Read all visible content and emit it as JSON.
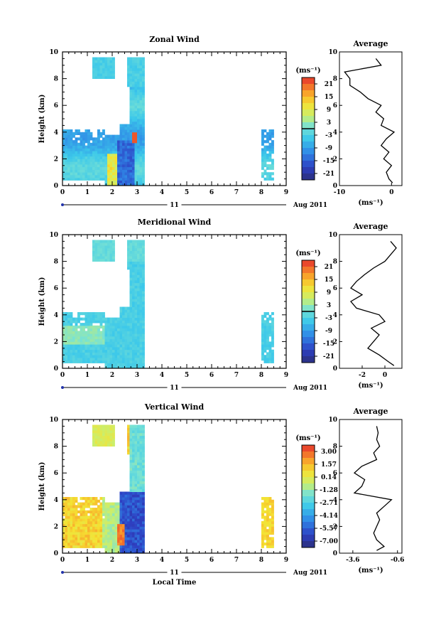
{
  "chart_data": [
    {
      "type": "heatmap",
      "title": "Zonal Wind",
      "xlabel": "",
      "ylabel": "Height (km)",
      "xlim": [
        0,
        9
      ],
      "ylim": [
        0,
        10
      ],
      "xticks": [
        "0",
        "1",
        "2",
        "3",
        "4",
        "5",
        "6",
        "7",
        "8",
        "9"
      ],
      "yticks": [
        "0",
        "2",
        "4",
        "6",
        "8",
        "10"
      ],
      "date_day": "11",
      "date_label": "Aug 2011",
      "colorbar": {
        "unit": "(ms⁻¹)",
        "labels": [
          "21",
          "15",
          "9",
          "3",
          "-3",
          "-9",
          "-15",
          "-21"
        ],
        "range": [
          -24,
          24
        ]
      },
      "average": {
        "title": "Average",
        "xlabel": "(ms⁻¹)",
        "xticks": [
          "-10",
          "0"
        ],
        "xlim": [
          -10,
          2
        ],
        "profile": [
          [
            0.2,
            0.2
          ],
          [
            0.5,
            -0.5
          ],
          [
            1.0,
            -1.0
          ],
          [
            1.5,
            0.0
          ],
          [
            2.0,
            -1.5
          ],
          [
            2.5,
            -0.5
          ],
          [
            3.0,
            -2.0
          ],
          [
            3.5,
            -1.0
          ],
          [
            4.0,
            0.5
          ],
          [
            4.5,
            -2.0
          ],
          [
            5.0,
            -1.5
          ],
          [
            5.5,
            -3.0
          ],
          [
            6.0,
            -2.0
          ],
          [
            6.5,
            -4.5
          ],
          [
            7.0,
            -6.0
          ],
          [
            7.5,
            -8.0
          ],
          [
            8.0,
            -8.0
          ],
          [
            8.5,
            -9.0
          ],
          [
            9.0,
            -2.0
          ],
          [
            9.5,
            -3.0
          ]
        ]
      }
    },
    {
      "type": "heatmap",
      "title": "Meridional Wind",
      "xlabel": "",
      "ylabel": "Height (km)",
      "xlim": [
        0,
        9
      ],
      "ylim": [
        0,
        10
      ],
      "xticks": [
        "0",
        "1",
        "2",
        "3",
        "4",
        "5",
        "6",
        "7",
        "8",
        "9"
      ],
      "yticks": [
        "0",
        "2",
        "4",
        "6",
        "8",
        "10"
      ],
      "date_day": "11",
      "date_label": "Aug 2011",
      "colorbar": {
        "unit": "(ms⁻¹)",
        "labels": [
          "21",
          "15",
          "9",
          "3",
          "-3",
          "-9",
          "-15",
          "-21"
        ],
        "range": [
          -24,
          24
        ]
      },
      "average": {
        "title": "Average",
        "xlabel": "(ms⁻¹)",
        "xticks": [
          "-2",
          "0"
        ],
        "xlim": [
          -4,
          1.5
        ],
        "profile": [
          [
            0.2,
            0.8
          ],
          [
            0.5,
            0.3
          ],
          [
            1.0,
            -0.5
          ],
          [
            1.5,
            -1.5
          ],
          [
            2.0,
            -1.0
          ],
          [
            2.5,
            -0.5
          ],
          [
            3.0,
            -1.2
          ],
          [
            3.5,
            0.0
          ],
          [
            4.0,
            -0.5
          ],
          [
            4.5,
            -2.5
          ],
          [
            5.0,
            -3.0
          ],
          [
            5.5,
            -2.0
          ],
          [
            6.0,
            -3.0
          ],
          [
            6.5,
            -2.5
          ],
          [
            7.0,
            -1.8
          ],
          [
            7.5,
            -1.0
          ],
          [
            8.0,
            0.0
          ],
          [
            8.5,
            0.5
          ],
          [
            9.0,
            1.0
          ],
          [
            9.5,
            0.5
          ]
        ]
      }
    },
    {
      "type": "heatmap",
      "title": "Vertical Wind",
      "xlabel": "Local Time",
      "ylabel": "Height (km)",
      "xlim": [
        0,
        9
      ],
      "ylim": [
        0,
        10
      ],
      "xticks": [
        "0",
        "1",
        "2",
        "3",
        "4",
        "5",
        "6",
        "7",
        "8",
        "9"
      ],
      "yticks": [
        "0",
        "2",
        "4",
        "6",
        "8",
        "10"
      ],
      "date_day": "11",
      "date_label": "Aug 2011",
      "colorbar": {
        "unit": "(ms⁻¹)",
        "labels": [
          "3.00",
          "1.57",
          "0.14",
          "-1.28",
          "-2.71",
          "-4.14",
          "-5.57",
          "-7.00"
        ],
        "range": [
          -7.5,
          3.5
        ]
      },
      "average": {
        "title": "Average",
        "xlabel": "(ms⁻¹)",
        "xticks": [
          "-3.6",
          "-0.6"
        ],
        "xlim": [
          -4.5,
          -0.3
        ],
        "profile": [
          [
            0.2,
            -2.0
          ],
          [
            0.5,
            -1.5
          ],
          [
            1.0,
            -2.0
          ],
          [
            1.5,
            -2.2
          ],
          [
            2.0,
            -2.0
          ],
          [
            2.5,
            -1.8
          ],
          [
            3.0,
            -2.0
          ],
          [
            3.5,
            -1.5
          ],
          [
            4.0,
            -1.0
          ],
          [
            4.5,
            -3.5
          ],
          [
            5.0,
            -3.0
          ],
          [
            5.5,
            -2.8
          ],
          [
            6.0,
            -3.5
          ],
          [
            6.5,
            -3.0
          ],
          [
            7.0,
            -2.0
          ],
          [
            7.5,
            -2.2
          ],
          [
            8.0,
            -1.8
          ],
          [
            8.5,
            -2.0
          ],
          [
            9.0,
            -1.9
          ],
          [
            9.5,
            -2.0
          ]
        ]
      }
    }
  ]
}
